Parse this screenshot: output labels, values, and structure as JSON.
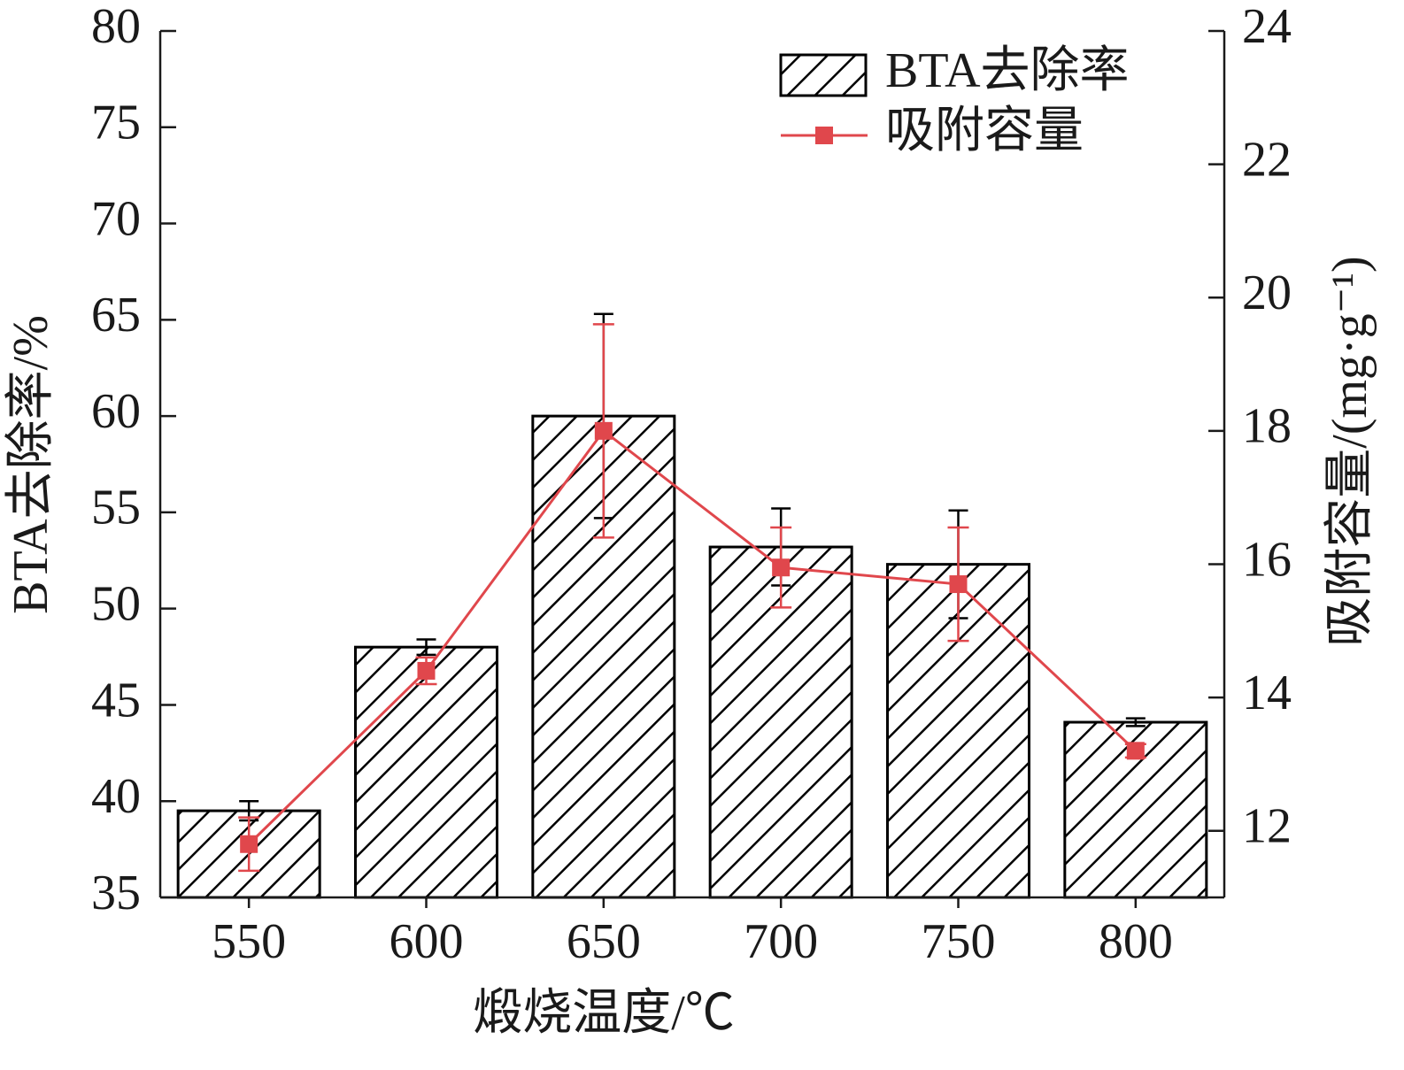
{
  "chart_data": {
    "type": "bar-line",
    "xlabel": "煅烧温度/℃",
    "ylabel": "BTA去除率/%",
    "y2label": "吸附容量/(mg·g⁻¹)",
    "categories": [
      "550",
      "600",
      "650",
      "700",
      "750",
      "800"
    ],
    "series": [
      {
        "name": "BTA去除率",
        "type": "bar",
        "color": "#000000",
        "hatch": true,
        "axis": "y",
        "values": [
          39.5,
          48.0,
          60.0,
          53.2,
          52.3,
          44.1
        ],
        "errors": [
          0.5,
          0.4,
          5.3,
          2.0,
          2.8,
          0.2
        ]
      },
      {
        "name": "吸附容量",
        "type": "line",
        "color": "#e0474c",
        "marker": "square",
        "axis": "y2",
        "values": [
          11.8,
          14.4,
          18.0,
          15.95,
          15.7,
          13.2
        ],
        "errors": [
          0.4,
          0.2,
          1.6,
          0.6,
          0.85,
          0.1
        ]
      }
    ],
    "ylim": [
      35,
      80
    ],
    "yticks": [
      35,
      40,
      45,
      50,
      55,
      60,
      65,
      70,
      75,
      80
    ],
    "y2lim": [
      11,
      24
    ],
    "y2ticks": [
      12,
      14,
      16,
      18,
      20,
      22,
      24
    ],
    "legend": "upper right",
    "grid": false
  }
}
